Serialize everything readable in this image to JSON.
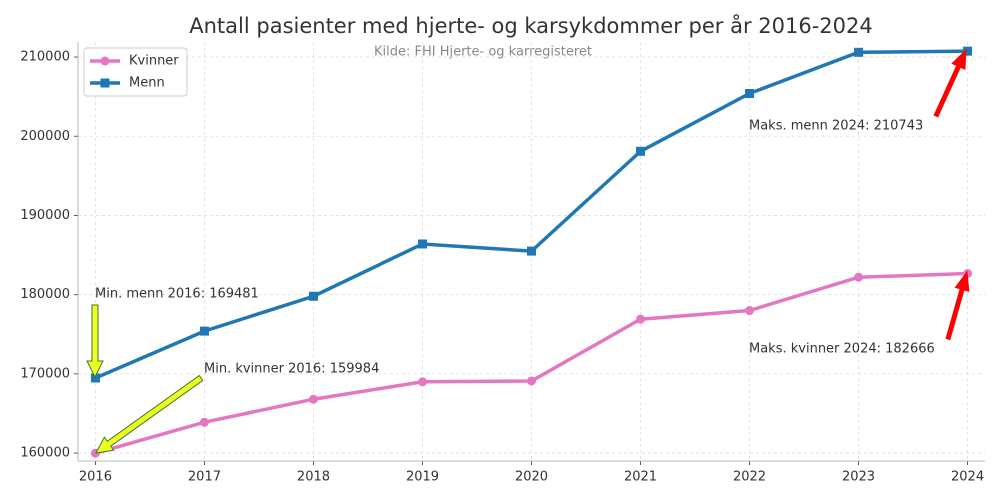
{
  "chart_data": {
    "type": "line",
    "title": "Antall pasienter med hjerte- og karsykdommer per år 2016-2024",
    "subtitle": "Kilde: FHI Hjerte- og karregisteret",
    "x": [
      2016,
      2017,
      2018,
      2019,
      2020,
      2021,
      2022,
      2023,
      2024
    ],
    "series": [
      {
        "name": "Kvinner",
        "color": "#e377c2",
        "marker": "circle",
        "values": [
          159984,
          163900,
          166800,
          169000,
          169100,
          176900,
          178000,
          182200,
          182666
        ]
      },
      {
        "name": "Menn",
        "color": "#1f77b4",
        "marker": "square",
        "values": [
          169481,
          175400,
          179800,
          186400,
          185500,
          198100,
          205400,
          210600,
          210743
        ]
      }
    ],
    "xlim": [
      2015.84,
      2024.16
    ],
    "ylim": [
      159000,
      211900
    ],
    "xticks": [
      2016,
      2017,
      2018,
      2019,
      2020,
      2021,
      2022,
      2023,
      2024
    ],
    "yticks": [
      160000,
      170000,
      180000,
      190000,
      200000,
      210000
    ],
    "grid": true,
    "legend": "upper-left",
    "annotations": [
      "Min. menn 2016: 169481",
      "Min. kvinner 2016: 159984",
      "Maks. menn 2024: 210743",
      "Maks. kvinner 2024: 182666"
    ]
  }
}
